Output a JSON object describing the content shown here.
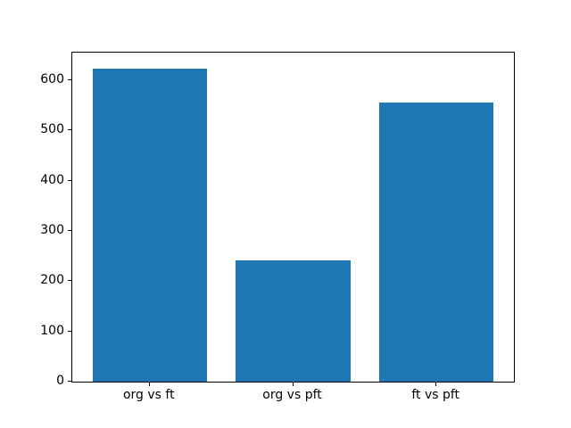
{
  "figure": {
    "background": "#ffffff"
  },
  "chart_data": {
    "type": "bar",
    "title": "",
    "xlabel": "",
    "ylabel": "",
    "categories": [
      "org vs ft",
      "org vs pft",
      "ft vs pft"
    ],
    "values": [
      624,
      241,
      555
    ],
    "yticks": [
      0,
      100,
      200,
      300,
      400,
      500,
      600
    ],
    "ylim": [
      0,
      655
    ],
    "xlim": [
      -0.54,
      2.54
    ],
    "bar_width": 0.8,
    "bar_color": "#1f77b4",
    "axis_color": "#000000",
    "tick_label_color": "#000000",
    "grid": false,
    "legend": "none"
  }
}
